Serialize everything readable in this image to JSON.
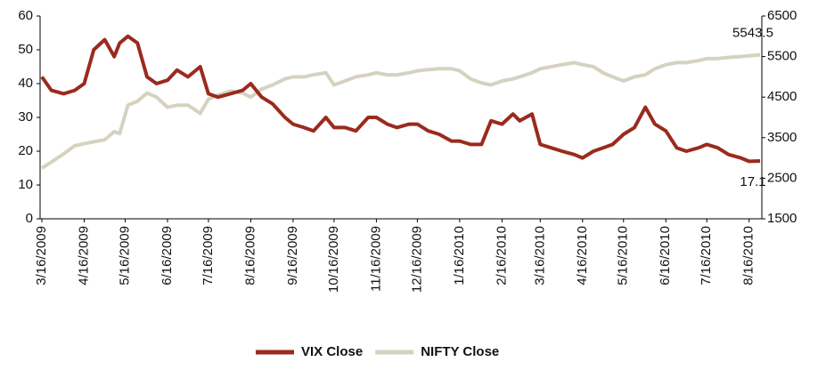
{
  "chart_data": {
    "type": "line",
    "x": [
      "3/16/2009",
      "3/23/2009",
      "4/1/2009",
      "4/9/2009",
      "4/16/2009",
      "4/23/2009",
      "5/1/2009",
      "5/8/2009",
      "5/12/2009",
      "5/18/2009",
      "5/25/2009",
      "6/1/2009",
      "6/8/2009",
      "6/16/2009",
      "6/23/2009",
      "7/1/2009",
      "7/10/2009",
      "7/16/2009",
      "7/23/2009",
      "8/1/2009",
      "8/10/2009",
      "8/16/2009",
      "8/24/2009",
      "9/1/2009",
      "9/10/2009",
      "9/16/2009",
      "9/24/2009",
      "10/1/2009",
      "10/10/2009",
      "10/16/2009",
      "10/24/2009",
      "11/1/2009",
      "11/10/2009",
      "11/16/2009",
      "11/24/2009",
      "12/1/2009",
      "12/10/2009",
      "12/16/2009",
      "12/24/2009",
      "1/1/2010",
      "1/10/2010",
      "1/16/2010",
      "1/24/2010",
      "2/1/2010",
      "2/8/2010",
      "2/16/2010",
      "2/24/2010",
      "3/1/2010",
      "3/10/2010",
      "3/16/2010",
      "3/24/2010",
      "4/1/2010",
      "4/10/2010",
      "4/16/2010",
      "4/24/2010",
      "5/1/2010",
      "5/8/2010",
      "5/16/2010",
      "5/24/2010",
      "6/1/2010",
      "6/8/2010",
      "6/16/2010",
      "6/24/2010",
      "7/1/2010",
      "7/10/2010",
      "7/16/2010",
      "7/24/2010",
      "8/1/2010",
      "8/10/2010",
      "8/16/2010",
      "8/24/2010"
    ],
    "series": [
      {
        "name": "VIX Close",
        "color": "#9b2a1e",
        "axis": "y",
        "values": [
          42,
          38,
          37,
          38,
          40,
          50,
          53,
          48,
          52,
          54,
          52,
          42,
          40,
          41,
          44,
          42,
          45,
          37,
          36,
          37,
          38,
          40,
          36,
          34,
          30,
          28,
          27,
          26,
          30,
          27,
          27,
          26,
          30,
          30,
          28,
          27,
          28,
          28,
          26,
          25,
          23,
          23,
          22,
          22,
          29,
          28,
          31,
          29,
          31,
          22,
          21,
          20,
          19,
          18,
          20,
          21,
          22,
          25,
          27,
          33,
          28,
          26,
          21,
          20,
          21,
          22,
          21,
          19,
          18,
          17,
          17.1
        ]
      },
      {
        "name": "NIFTY Close",
        "color": "#d6d2c0",
        "axis": "y2",
        "values": [
          2750,
          2900,
          3100,
          3300,
          3350,
          3400,
          3450,
          3650,
          3600,
          4300,
          4400,
          4600,
          4500,
          4250,
          4300,
          4300,
          4100,
          4450,
          4550,
          4650,
          4600,
          4500,
          4700,
          4800,
          4950,
          5000,
          5000,
          5050,
          5100,
          4800,
          4900,
          5000,
          5050,
          5100,
          5050,
          5050,
          5100,
          5150,
          5180,
          5200,
          5200,
          5150,
          4950,
          4850,
          4800,
          4900,
          4950,
          5000,
          5100,
          5200,
          5250,
          5300,
          5350,
          5300,
          5250,
          5100,
          5000,
          4900,
          5000,
          5050,
          5200,
          5300,
          5350,
          5350,
          5400,
          5450,
          5450,
          5480,
          5500,
          5520,
          5543.5
        ]
      }
    ],
    "ylim": [
      0,
      60
    ],
    "yticks": [
      0,
      10,
      20,
      30,
      40,
      50,
      60
    ],
    "y2lim": [
      1500,
      6500
    ],
    "y2ticks": [
      1500,
      2500,
      3500,
      4500,
      5500,
      6500
    ],
    "xticks": [
      "3/16/2009",
      "4/16/2009",
      "5/16/2009",
      "6/16/2009",
      "7/16/2009",
      "8/16/2009",
      "9/16/2009",
      "10/16/2009",
      "11/16/2009",
      "12/16/2009",
      "1/16/2010",
      "2/16/2010",
      "3/16/2010",
      "4/16/2010",
      "5/16/2010",
      "6/16/2010",
      "7/16/2010",
      "8/16/2010"
    ],
    "grid": false,
    "legend": "bottom"
  }
}
